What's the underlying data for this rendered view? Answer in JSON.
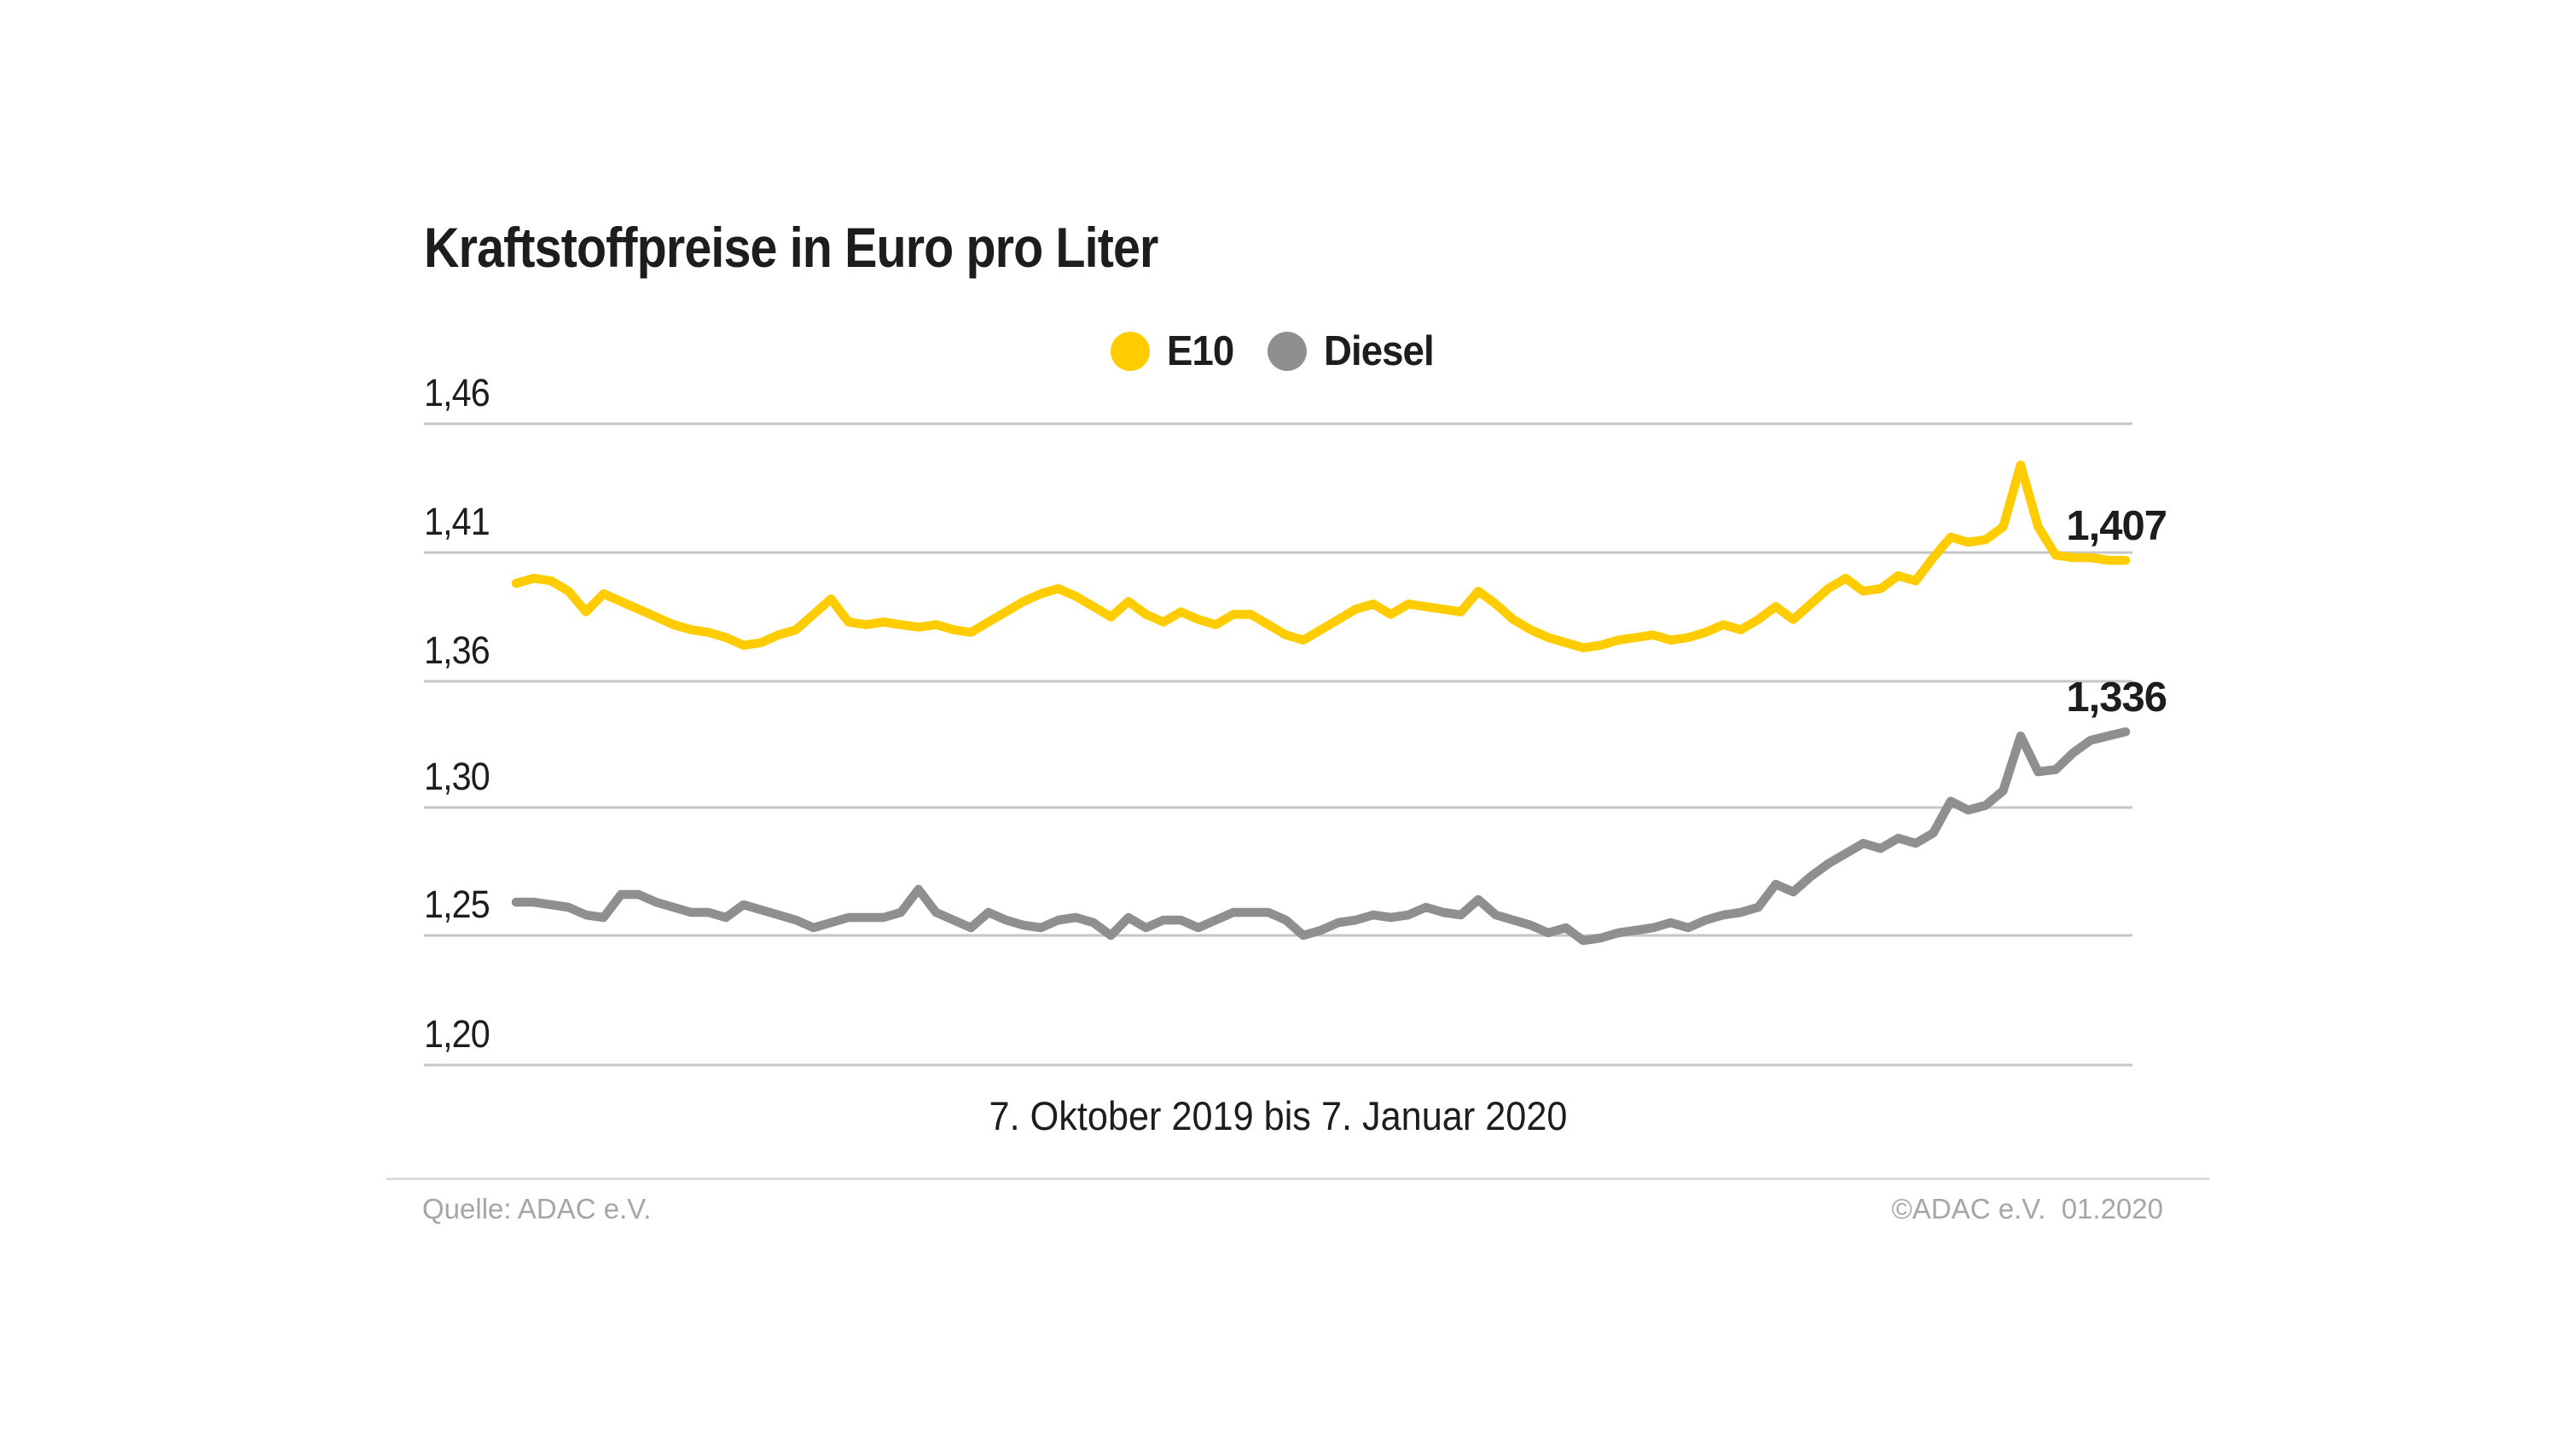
{
  "header": {
    "title": "Kraftstoffpreise in Euro pro Liter"
  },
  "footer": {
    "source": "Quelle: ADAC e.V.",
    "copyright": "©ADAC e.V.  01.2020"
  },
  "colors": {
    "e10": "#ffcc00",
    "diesel": "#8f8f8f",
    "grid": "#c6c6c6",
    "text": "#1d1d1b",
    "muted": "#a6a6a6",
    "divider": "#dedede",
    "background": "#ffffff"
  },
  "chart_data": {
    "type": "line",
    "title": "Kraftstoffpreise in Euro pro Liter",
    "xlabel": "7. Oktober 2019 bis 7. Januar 2020",
    "x_range": [
      "7. Oktober 2019",
      "7. Januar 2020"
    ],
    "unit": "Euro pro Liter",
    "grid": true,
    "legend_position": "top-center",
    "y_ticks": {
      "labels": [
        "1,46",
        "1,41",
        "1,36",
        "1,30",
        "1,25",
        "1,20"
      ],
      "values": [
        1.46,
        1.41,
        1.36,
        1.3,
        1.25,
        1.2
      ]
    },
    "series": [
      {
        "name": "E10",
        "color": "#ffcc00",
        "end_label": "1,407",
        "end_value": 1.407,
        "values": [
          1.398,
          1.4,
          1.399,
          1.395,
          1.387,
          1.394,
          1.391,
          1.388,
          1.385,
          1.382,
          1.38,
          1.379,
          1.377,
          1.374,
          1.375,
          1.378,
          1.38,
          1.386,
          1.392,
          1.383,
          1.382,
          1.383,
          1.382,
          1.381,
          1.382,
          1.38,
          1.379,
          1.383,
          1.387,
          1.391,
          1.394,
          1.396,
          1.393,
          1.389,
          1.385,
          1.391,
          1.386,
          1.383,
          1.387,
          1.384,
          1.382,
          1.386,
          1.386,
          1.382,
          1.378,
          1.376,
          1.38,
          1.384,
          1.388,
          1.39,
          1.386,
          1.39,
          1.389,
          1.388,
          1.387,
          1.395,
          1.39,
          1.384,
          1.38,
          1.377,
          1.375,
          1.373,
          1.374,
          1.376,
          1.377,
          1.378,
          1.376,
          1.377,
          1.379,
          1.382,
          1.38,
          1.384,
          1.389,
          1.384,
          1.39,
          1.396,
          1.4,
          1.395,
          1.396,
          1.401,
          1.399,
          1.408,
          1.416,
          1.414,
          1.415,
          1.42,
          1.444,
          1.42,
          1.409,
          1.408,
          1.408,
          1.407,
          1.407
        ]
      },
      {
        "name": "Diesel",
        "color": "#8f8f8f",
        "end_label": "1,336",
        "end_value": 1.336,
        "values": [
          1.263,
          1.263,
          1.262,
          1.261,
          1.258,
          1.257,
          1.266,
          1.266,
          1.263,
          1.261,
          1.259,
          1.259,
          1.257,
          1.262,
          1.26,
          1.258,
          1.256,
          1.253,
          1.255,
          1.257,
          1.257,
          1.257,
          1.259,
          1.268,
          1.259,
          1.256,
          1.253,
          1.259,
          1.256,
          1.254,
          1.253,
          1.256,
          1.257,
          1.255,
          1.25,
          1.257,
          1.253,
          1.256,
          1.256,
          1.253,
          1.256,
          1.259,
          1.259,
          1.259,
          1.256,
          1.25,
          1.252,
          1.255,
          1.256,
          1.258,
          1.257,
          1.258,
          1.261,
          1.259,
          1.258,
          1.264,
          1.258,
          1.256,
          1.254,
          1.251,
          1.253,
          1.248,
          1.249,
          1.251,
          1.252,
          1.253,
          1.255,
          1.253,
          1.256,
          1.258,
          1.259,
          1.261,
          1.27,
          1.267,
          1.273,
          1.278,
          1.282,
          1.286,
          1.284,
          1.288,
          1.286,
          1.29,
          1.303,
          1.299,
          1.301,
          1.308,
          1.334,
          1.317,
          1.318,
          1.326,
          1.332,
          1.334,
          1.336
        ]
      }
    ]
  }
}
